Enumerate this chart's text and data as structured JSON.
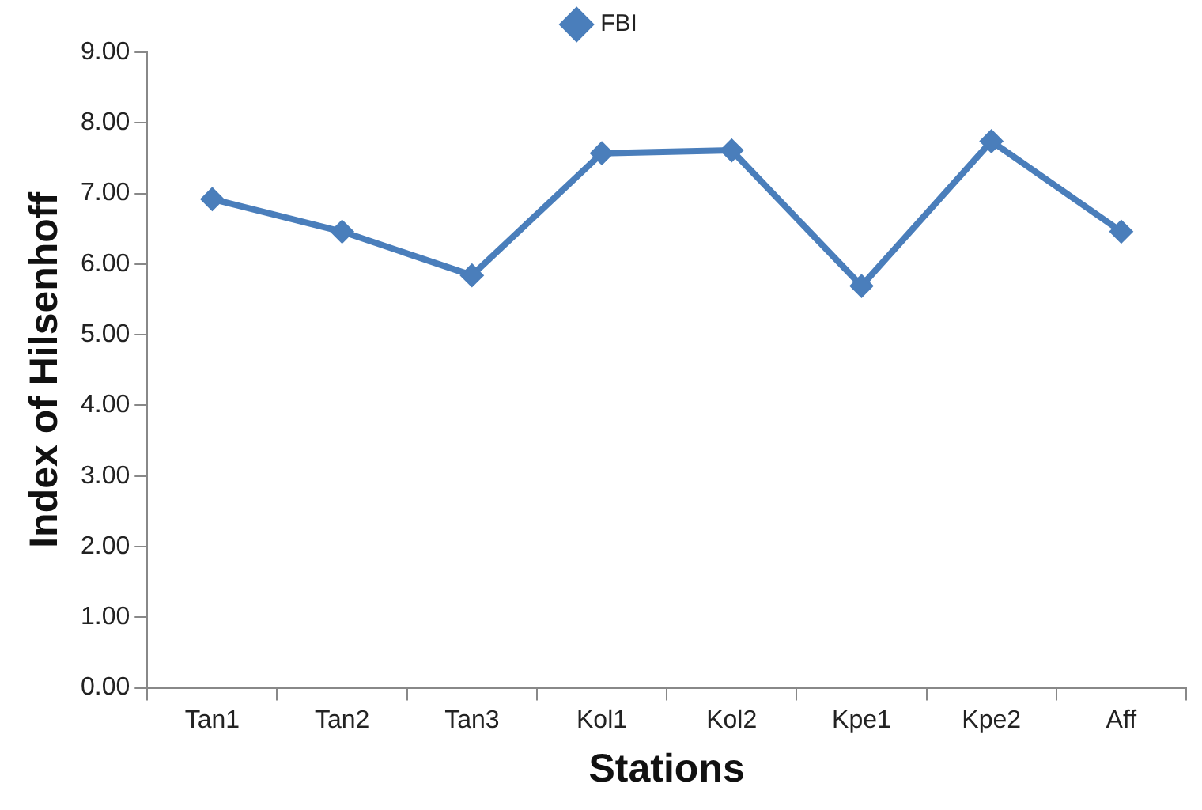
{
  "chart_data": {
    "type": "line",
    "xlabel": "Stations",
    "ylabel": "Index of Hilsenhoff",
    "categories": [
      "Tan1",
      "Tan2",
      "Tan3",
      "Kol1",
      "Kol2",
      "Kpe1",
      "Kpe2",
      "Aff"
    ],
    "series": [
      {
        "name": "FBI",
        "color": "#4a7ebb",
        "values": [
          6.92,
          6.46,
          5.84,
          7.57,
          7.61,
          5.69,
          7.74,
          6.46
        ]
      }
    ],
    "ylim": [
      0,
      9
    ],
    "yticks": [
      {
        "value": 0,
        "label": "0.00"
      },
      {
        "value": 1,
        "label": "1.00"
      },
      {
        "value": 2,
        "label": "2.00"
      },
      {
        "value": 3,
        "label": "3.00"
      },
      {
        "value": 4,
        "label": "4.00"
      },
      {
        "value": 5,
        "label": "5.00"
      },
      {
        "value": 6,
        "label": "6.00"
      },
      {
        "value": 7,
        "label": "7.00"
      },
      {
        "value": 8,
        "label": "8.00"
      },
      {
        "value": 9,
        "label": "9.00"
      }
    ],
    "grid": false,
    "legend": "top",
    "marker": "diamond",
    "line_style": "solid"
  }
}
